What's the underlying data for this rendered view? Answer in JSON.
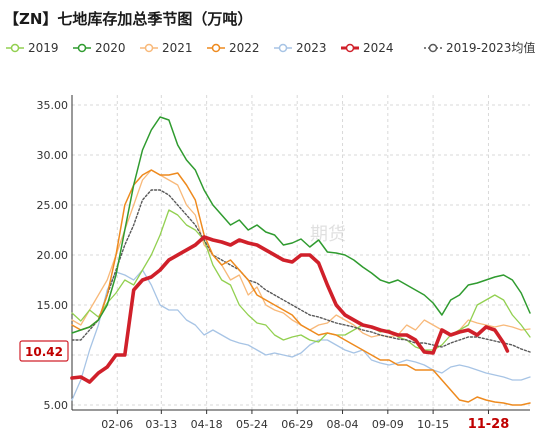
{
  "chart_data": {
    "type": "line",
    "title": "【ZN】七地库存加总季节图（万吨）",
    "xlabel": "",
    "ylabel": "",
    "ylim": [
      4.5,
      36
    ],
    "yticks": [
      "35.00",
      "30.00",
      "25.00",
      "20.00",
      "15.00",
      "10.00",
      "5.00"
    ],
    "ytick_values": [
      35,
      30,
      25,
      20,
      15,
      10,
      5
    ],
    "xticks": [
      "02-06",
      "03-13",
      "04-18",
      "05-24",
      "06-29",
      "08-04",
      "09-09",
      "10-15",
      "11-28"
    ],
    "xtick_days": [
      37,
      72,
      108,
      144,
      180,
      216,
      252,
      288,
      332
    ],
    "x_range_days": [
      1,
      365
    ],
    "grid": true,
    "legend_position": "top",
    "last_value_label": "10.42",
    "highlight_tick": "11-28",
    "watermark": "期货",
    "series": [
      {
        "name": "2019",
        "color": "#92d050",
        "width": 1.3,
        "dash": "",
        "x": [
          1,
          8,
          15,
          22,
          29,
          36,
          43,
          50,
          57,
          64,
          71,
          78,
          85,
          92,
          99,
          106,
          113,
          120,
          127,
          134,
          141,
          148,
          155,
          162,
          169,
          176,
          183,
          190,
          197,
          204,
          211,
          218,
          225,
          232,
          239,
          246,
          253,
          260,
          267,
          274,
          281,
          288,
          295,
          302,
          309,
          316,
          323,
          330,
          337,
          344,
          351,
          358,
          365
        ],
        "y": [
          14.2,
          13.4,
          14.5,
          13.8,
          15.2,
          16.2,
          17.5,
          17.0,
          18.5,
          20.0,
          22.0,
          24.5,
          24.0,
          23.0,
          22.5,
          21.5,
          19.0,
          17.5,
          17.0,
          15.0,
          14.0,
          13.2,
          13.0,
          12.0,
          11.5,
          11.8,
          12.0,
          11.5,
          11.3,
          12.2,
          12.0,
          12.0,
          12.5,
          13.0,
          12.8,
          12.3,
          12.5,
          11.8,
          11.5,
          10.8,
          10.5,
          10.5,
          11.0,
          12.0,
          12.5,
          13.0,
          15.0,
          15.5,
          16.0,
          15.5,
          14.0,
          13.0,
          11.8
        ]
      },
      {
        "name": "2020",
        "color": "#2f9b2f",
        "width": 1.5,
        "dash": "",
        "x": [
          1,
          8,
          15,
          22,
          29,
          36,
          43,
          50,
          57,
          64,
          71,
          78,
          85,
          92,
          99,
          106,
          113,
          120,
          127,
          134,
          141,
          148,
          155,
          162,
          169,
          176,
          183,
          190,
          197,
          204,
          211,
          218,
          225,
          232,
          239,
          246,
          253,
          260,
          267,
          274,
          281,
          288,
          295,
          302,
          309,
          316,
          323,
          330,
          337,
          344,
          351,
          358,
          365
        ],
        "y": [
          12.2,
          12.5,
          12.8,
          13.5,
          15.0,
          18.0,
          22.5,
          27.0,
          30.5,
          32.5,
          33.8,
          33.5,
          31.0,
          29.5,
          28.5,
          26.5,
          25.0,
          24.0,
          23.0,
          23.5,
          22.5,
          23.0,
          22.3,
          22.0,
          21.0,
          21.2,
          21.6,
          20.8,
          21.5,
          20.3,
          20.2,
          20.0,
          19.5,
          18.8,
          18.2,
          17.5,
          17.2,
          17.5,
          17.0,
          16.5,
          16.0,
          15.2,
          14.0,
          15.5,
          16.0,
          17.0,
          17.2,
          17.5,
          17.8,
          18.0,
          17.5,
          16.2,
          14.2
        ]
      },
      {
        "name": "2021",
        "color": "#f8b97a",
        "width": 1.3,
        "dash": "",
        "x": [
          1,
          8,
          15,
          22,
          29,
          36,
          43,
          50,
          57,
          64,
          71,
          78,
          85,
          92,
          99,
          106,
          113,
          120,
          127,
          134,
          141,
          148,
          155,
          162,
          169,
          176,
          183,
          190,
          197,
          204,
          211,
          218,
          225,
          232,
          239,
          246,
          253,
          260,
          267,
          274,
          281,
          288,
          295,
          302,
          309,
          316,
          323,
          330,
          337,
          344,
          351,
          358,
          365
        ],
        "y": [
          13.5,
          13.0,
          14.5,
          16.0,
          17.5,
          20.0,
          22.5,
          25.0,
          27.5,
          28.5,
          28.0,
          27.5,
          27.0,
          25.0,
          24.0,
          21.0,
          20.0,
          19.0,
          17.5,
          18.0,
          16.0,
          16.8,
          15.0,
          14.5,
          14.2,
          13.5,
          13.0,
          12.5,
          13.0,
          13.2,
          14.0,
          13.5,
          13.0,
          12.2,
          11.8,
          12.0,
          11.8,
          12.0,
          13.0,
          12.5,
          13.5,
          13.0,
          12.5,
          12.0,
          12.5,
          13.5,
          13.2,
          13.0,
          12.8,
          13.0,
          12.8,
          12.5,
          12.6
        ]
      },
      {
        "name": "2022",
        "color": "#ee8a1e",
        "width": 1.5,
        "dash": "",
        "x": [
          1,
          8,
          15,
          22,
          29,
          36,
          43,
          50,
          57,
          64,
          71,
          78,
          85,
          92,
          99,
          106,
          113,
          120,
          127,
          134,
          141,
          148,
          155,
          162,
          169,
          176,
          183,
          190,
          197,
          204,
          211,
          218,
          225,
          232,
          239,
          246,
          253,
          260,
          267,
          274,
          281,
          288,
          295,
          302,
          309,
          316,
          323,
          330,
          337,
          344,
          351,
          358,
          365
        ],
        "y": [
          13.0,
          12.5,
          12.8,
          13.5,
          16.0,
          20.0,
          25.0,
          27.0,
          28.0,
          28.5,
          28.0,
          28.0,
          28.2,
          27.0,
          25.5,
          22.0,
          20.0,
          19.0,
          19.5,
          18.5,
          17.5,
          16.0,
          15.5,
          15.0,
          14.5,
          14.0,
          13.0,
          12.5,
          12.0,
          12.2,
          12.0,
          11.5,
          11.0,
          10.5,
          10.0,
          9.5,
          9.5,
          9.0,
          9.0,
          8.5,
          8.5,
          8.5,
          7.5,
          6.5,
          5.5,
          5.3,
          5.8,
          5.5,
          5.3,
          5.2,
          5.0,
          5.0,
          5.2
        ]
      },
      {
        "name": "2023",
        "color": "#a7c4e5",
        "width": 1.3,
        "dash": "",
        "x": [
          1,
          8,
          15,
          22,
          29,
          36,
          43,
          50,
          57,
          64,
          71,
          78,
          85,
          92,
          99,
          106,
          113,
          120,
          127,
          134,
          141,
          148,
          155,
          162,
          169,
          176,
          183,
          190,
          197,
          204,
          211,
          218,
          225,
          232,
          239,
          246,
          253,
          260,
          267,
          274,
          281,
          288,
          295,
          302,
          309,
          316,
          323,
          330,
          337,
          344,
          351,
          358,
          365
        ],
        "y": [
          5.5,
          7.5,
          10.5,
          13.0,
          16.5,
          18.3,
          18.0,
          17.5,
          18.5,
          17.0,
          15.0,
          14.5,
          14.5,
          13.5,
          13.0,
          12.0,
          12.5,
          12.0,
          11.5,
          11.2,
          11.0,
          10.5,
          10.0,
          10.2,
          10.0,
          9.8,
          10.2,
          11.0,
          11.5,
          11.5,
          11.0,
          10.5,
          10.2,
          10.5,
          9.5,
          9.2,
          9.0,
          9.2,
          9.5,
          9.3,
          9.0,
          8.5,
          8.2,
          8.8,
          9.0,
          8.8,
          8.5,
          8.2,
          8.0,
          7.8,
          7.5,
          7.5,
          7.8
        ]
      },
      {
        "name": "2024",
        "color": "#d0202a",
        "width": 3.6,
        "dash": "",
        "x": [
          1,
          8,
          15,
          22,
          29,
          36,
          43,
          50,
          57,
          64,
          71,
          78,
          85,
          92,
          99,
          106,
          113,
          120,
          127,
          134,
          141,
          148,
          155,
          162,
          169,
          176,
          183,
          190,
          197,
          204,
          211,
          218,
          225,
          232,
          239,
          246,
          253,
          260,
          267,
          274,
          281,
          288,
          295,
          302,
          309,
          316,
          323,
          330,
          337,
          344,
          347
        ],
        "y": [
          7.7,
          7.8,
          7.3,
          8.2,
          8.8,
          10.0,
          10.0,
          16.5,
          17.5,
          17.8,
          18.5,
          19.5,
          20.0,
          20.5,
          21.0,
          21.8,
          21.5,
          21.3,
          21.0,
          21.5,
          21.2,
          21.0,
          20.5,
          20.0,
          19.5,
          19.3,
          20.0,
          20.0,
          19.2,
          17.0,
          15.0,
          14.0,
          13.5,
          13.0,
          12.8,
          12.5,
          12.3,
          12.0,
          12.0,
          11.5,
          10.3,
          10.2,
          12.5,
          12.0,
          12.3,
          12.5,
          12.0,
          12.8,
          12.5,
          11.2,
          10.4
        ]
      },
      {
        "name": "2019-2023均值",
        "color": "#595959",
        "width": 1.4,
        "dash": "2 2",
        "x": [
          1,
          8,
          15,
          22,
          29,
          36,
          43,
          50,
          57,
          64,
          71,
          78,
          85,
          92,
          99,
          106,
          113,
          120,
          127,
          134,
          141,
          148,
          155,
          162,
          169,
          176,
          183,
          190,
          197,
          204,
          211,
          218,
          225,
          232,
          239,
          246,
          253,
          260,
          267,
          274,
          281,
          288,
          295,
          302,
          309,
          316,
          323,
          330,
          337,
          344,
          351,
          358,
          365
        ],
        "y": [
          11.5,
          11.5,
          12.5,
          13.5,
          16.0,
          18.5,
          21.0,
          23.0,
          25.5,
          26.5,
          26.5,
          26.0,
          25.0,
          24.0,
          23.0,
          21.5,
          20.0,
          19.5,
          19.0,
          18.5,
          17.5,
          17.2,
          16.5,
          16.0,
          15.5,
          15.0,
          14.5,
          14.0,
          13.8,
          13.5,
          13.2,
          13.0,
          12.8,
          12.5,
          12.3,
          12.0,
          11.8,
          11.6,
          11.5,
          11.2,
          11.2,
          11.0,
          10.8,
          11.2,
          11.5,
          11.8,
          11.8,
          11.6,
          11.4,
          11.2,
          11.0,
          10.6,
          10.3
        ]
      }
    ]
  }
}
